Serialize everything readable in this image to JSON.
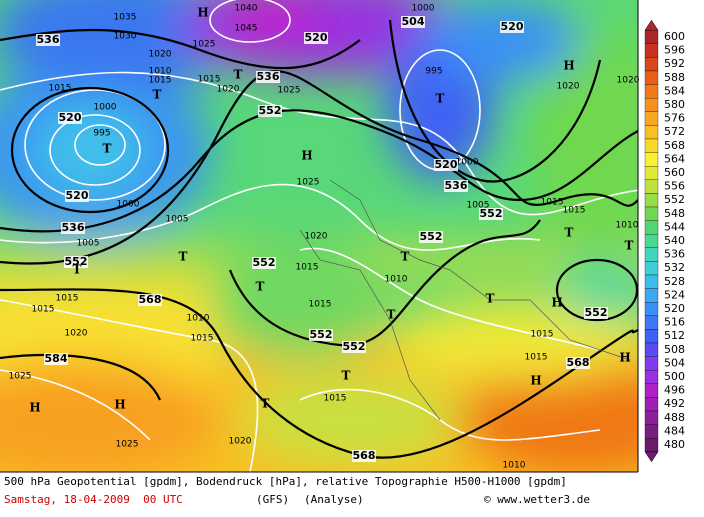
{
  "map": {
    "contour_labels": [
      "536",
      "520",
      "520",
      "536",
      "552",
      "568",
      "584",
      "552",
      "536",
      "520",
      "504",
      "520",
      "520",
      "536",
      "552",
      "552",
      "552",
      "552",
      "552",
      "568",
      "568",
      "552"
    ],
    "centers": [
      "H",
      "T",
      "T",
      "T",
      "T",
      "H",
      "H",
      "T",
      "T",
      "T",
      "T",
      "T",
      "T",
      "H",
      "T",
      "T",
      "T",
      "T",
      "H",
      "H",
      "H",
      "H"
    ],
    "pressure_labels": [
      "1035",
      "1030",
      "1020",
      "1025",
      "1010",
      "1015",
      "1015",
      "1020",
      "1025",
      "1040",
      "1045",
      "1000",
      "995",
      "1020",
      "1020",
      "1015",
      "1000",
      "995",
      "1000",
      "1005",
      "1005",
      "1025",
      "1005",
      "1000",
      "1015",
      "1015",
      "1010",
      "1020",
      "1015",
      "1010",
      "1015",
      "1015",
      "1015",
      "1020",
      "1010",
      "1015",
      "1015",
      "1015",
      "1025",
      "1015",
      "1020",
      "1025",
      "1010"
    ]
  },
  "legend": {
    "values": [
      600,
      596,
      592,
      588,
      584,
      580,
      576,
      572,
      568,
      564,
      560,
      556,
      552,
      548,
      544,
      540,
      536,
      532,
      528,
      524,
      520,
      516,
      512,
      508,
      504,
      500,
      496,
      492,
      488,
      484,
      480
    ],
    "colors": [
      "#a82828",
      "#c83020",
      "#d84818",
      "#e86018",
      "#f07818",
      "#f89020",
      "#f8a820",
      "#f8c020",
      "#f8d828",
      "#f8f030",
      "#e0e838",
      "#c0e040",
      "#98dc48",
      "#70d850",
      "#50d870",
      "#48d890",
      "#44d4b8",
      "#40ccd8",
      "#3cbce8",
      "#3aa8f2",
      "#3a90f5",
      "#3c78f5",
      "#4060f5",
      "#5a4cf2",
      "#7f3cf0",
      "#9a30e0",
      "#b020c8",
      "#a020b5",
      "#8e1f9c",
      "#7a1f82",
      "#6a1b6a"
    ]
  },
  "footer": {
    "line1": "500 hPa Geopotential [gpdm], Bodendruck [hPa], relative Topographie H500-H1000 [gpdm]",
    "date": "Samstag, 18-04-2009  00 UTC",
    "model": "(GFS)",
    "analysis": "(Analyse)",
    "copyright": "© www.wetter3.de"
  }
}
